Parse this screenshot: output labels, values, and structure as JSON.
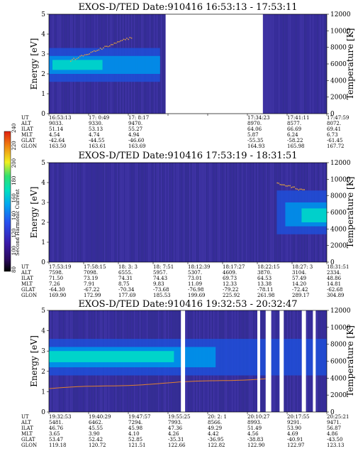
{
  "figure": {
    "colorbar": {
      "label": "Second Harmonic Current",
      "ticks": [
        "80",
        "100",
        "120",
        "140",
        "160",
        "180",
        "200",
        "220",
        "240"
      ]
    },
    "row_labels": [
      "UT",
      "ALT",
      "ILAT",
      "MLT",
      "GLAT",
      "GLON"
    ]
  },
  "chart_data": [
    {
      "type": "heatmap",
      "title": "EXOS-D/TED   Date:910416   16:53:13 - 17:53:11",
      "ylabel": "Energy [eV]",
      "ylabel_right": "Temperature [K]",
      "ylim": [
        0,
        5
      ],
      "ylim_right": [
        0,
        12000
      ],
      "yticks": [
        "0",
        "1",
        "2",
        "3",
        "4",
        "5"
      ],
      "yticks_right": [
        "0",
        "2000",
        "4000",
        "6000",
        "8000",
        "10000",
        "12000"
      ],
      "data_gaps": [
        [
          0.42,
          0.77
        ]
      ],
      "columns": [
        {
          "UT": "16:53:13",
          "ALT": "9033.",
          "ILAT": "51.14",
          "MLT": "4.54",
          "GLAT": "-42.64",
          "GLON": "163.50"
        },
        {
          "UT": "17: 0:49",
          "ALT": "9330.",
          "ILAT": "53.13",
          "MLT": "4.74",
          "GLAT": "-44.55",
          "GLON": "163.61"
        },
        {
          "UT": "17: 8:17",
          "ALT": "9470.",
          "ILAT": "55.27",
          "MLT": "4.94",
          "GLAT": "-46.60",
          "GLON": "163.69"
        },
        {
          "UT": "",
          "ALT": "",
          "ILAT": "",
          "MLT": "",
          "GLAT": "",
          "GLON": ""
        },
        {
          "UT": "",
          "ALT": "",
          "ILAT": "",
          "MLT": "",
          "GLAT": "",
          "GLON": ""
        },
        {
          "UT": "17:34:23",
          "ALT": "8970.",
          "ILAT": "64.06",
          "MLT": "5.87",
          "GLAT": "-55.35",
          "GLON": "164.93"
        },
        {
          "UT": "17:41:11",
          "ALT": "8577.",
          "ILAT": "66.69",
          "MLT": "6.24",
          "GLAT": "-58.22",
          "GLON": "165.98"
        },
        {
          "UT": "17:47:59",
          "ALT": "8072.",
          "ILAT": "69.41",
          "MLT": "6.73",
          "GLAT": "-61.45",
          "GLON": "167.72"
        }
      ]
    },
    {
      "type": "heatmap",
      "title": "EXOS-D/TED   Date:910416   17:53:19 - 18:31:51",
      "ylabel": "Energy [eV]",
      "ylabel_right": "Temperature [K]",
      "ylim": [
        0,
        5
      ],
      "ylim_right": [
        0,
        12000
      ],
      "yticks": [
        "0",
        "1",
        "2",
        "3",
        "4",
        "5"
      ],
      "yticks_right": [
        "0",
        "2000",
        "4000",
        "6000",
        "8000",
        "10000",
        "12000"
      ],
      "data_gaps": [],
      "columns": [
        {
          "UT": "17:53:19",
          "ALT": "7598.",
          "ILAT": "71.50",
          "MLT": "7.26",
          "GLAT": "-64.30",
          "GLON": "169.90"
        },
        {
          "UT": "17:58:15",
          "ALT": "7098.",
          "ILAT": "73.19",
          "MLT": "7.91",
          "GLAT": "-67.22",
          "GLON": "172.99"
        },
        {
          "UT": "18: 3: 3",
          "ALT": "6555.",
          "ILAT": "74.31",
          "MLT": "8.75",
          "GLAT": "-70.34",
          "GLON": "177.69"
        },
        {
          "UT": "18: 7:51",
          "ALT": "5957.",
          "ILAT": "74.43",
          "MLT": "9.83",
          "GLAT": "-73.68",
          "GLON": "185.53"
        },
        {
          "UT": "18:12:39",
          "ALT": "5307.",
          "ILAT": "73.01",
          "MLT": "11.09",
          "GLAT": "-76.98",
          "GLON": "199.69"
        },
        {
          "UT": "18:17:27",
          "ALT": "4609.",
          "ILAT": "69.73",
          "MLT": "12.33",
          "GLAT": "-79.22",
          "GLON": "225.92"
        },
        {
          "UT": "18:22:15",
          "ALT": "3870.",
          "ILAT": "64.53",
          "MLT": "13.38",
          "GLAT": "-78.11",
          "GLON": "261.98"
        },
        {
          "UT": "18:27: 3",
          "ALT": "3104.",
          "ILAT": "57.49",
          "MLT": "14.20",
          "GLAT": "-72.42",
          "GLON": "289.17"
        },
        {
          "UT": "18:31:51",
          "ALT": "2334.",
          "ILAT": "48.86",
          "MLT": "14.81",
          "GLAT": "-62.68",
          "GLON": "304.89"
        }
      ]
    },
    {
      "type": "heatmap",
      "title": "EXOS-D/TED   Date:910416   19:32:53 - 20:32:47",
      "ylabel": "Energy [eV]",
      "ylabel_right": "Temperature [K]",
      "ylim": [
        0,
        5
      ],
      "ylim_right": [
        0,
        12000
      ],
      "yticks": [
        "0",
        "1",
        "2",
        "3",
        "4",
        "5"
      ],
      "yticks_right": [
        "0",
        "2000",
        "4000",
        "6000",
        "8000",
        "10000",
        "12000"
      ],
      "data_gaps": [
        [
          0.475,
          0.49
        ],
        [
          0.75,
          0.76
        ],
        [
          0.78,
          0.8
        ],
        [
          0.83,
          0.845
        ],
        [
          0.91,
          0.925
        ],
        [
          0.95,
          0.96
        ]
      ],
      "columns": [
        {
          "UT": "19:32:53",
          "ALT": "5481.",
          "ILAT": "46.76",
          "MLT": "3.65",
          "GLAT": "53.47",
          "GLON": "119.18"
        },
        {
          "UT": "19:40:29",
          "ALT": "6462.",
          "ILAT": "45.55",
          "MLT": "3.90",
          "GLAT": "52.42",
          "GLON": "120.72"
        },
        {
          "UT": "19:47:57",
          "ALT": "7294.",
          "ILAT": "45.98",
          "MLT": "4.10",
          "GLAT": "52.85",
          "GLON": "121.51"
        },
        {
          "UT": "19:55:25",
          "ALT": "7993.",
          "ILAT": "47.36",
          "MLT": "4.26",
          "GLAT": "-35.31",
          "GLON": "122.66"
        },
        {
          "UT": "20: 2: 1",
          "ALT": "8566.",
          "ILAT": "49.29",
          "MLT": "4.42",
          "GLAT": "-36.95",
          "GLON": "122.82"
        },
        {
          "UT": "20:10:27",
          "ALT": "8993.",
          "ILAT": "51.49",
          "MLT": "4.56",
          "GLAT": "-38.83",
          "GLON": "122.90"
        },
        {
          "UT": "20:17:55",
          "ALT": "9291.",
          "ILAT": "53.90",
          "MLT": "4.69",
          "GLAT": "-40.91",
          "GLON": "122.97"
        },
        {
          "UT": "20:25:21",
          "ALT": "9471.",
          "ILAT": "56.87",
          "MLT": "4.86",
          "GLAT": "-43.50",
          "GLON": "123.13"
        }
      ]
    }
  ]
}
